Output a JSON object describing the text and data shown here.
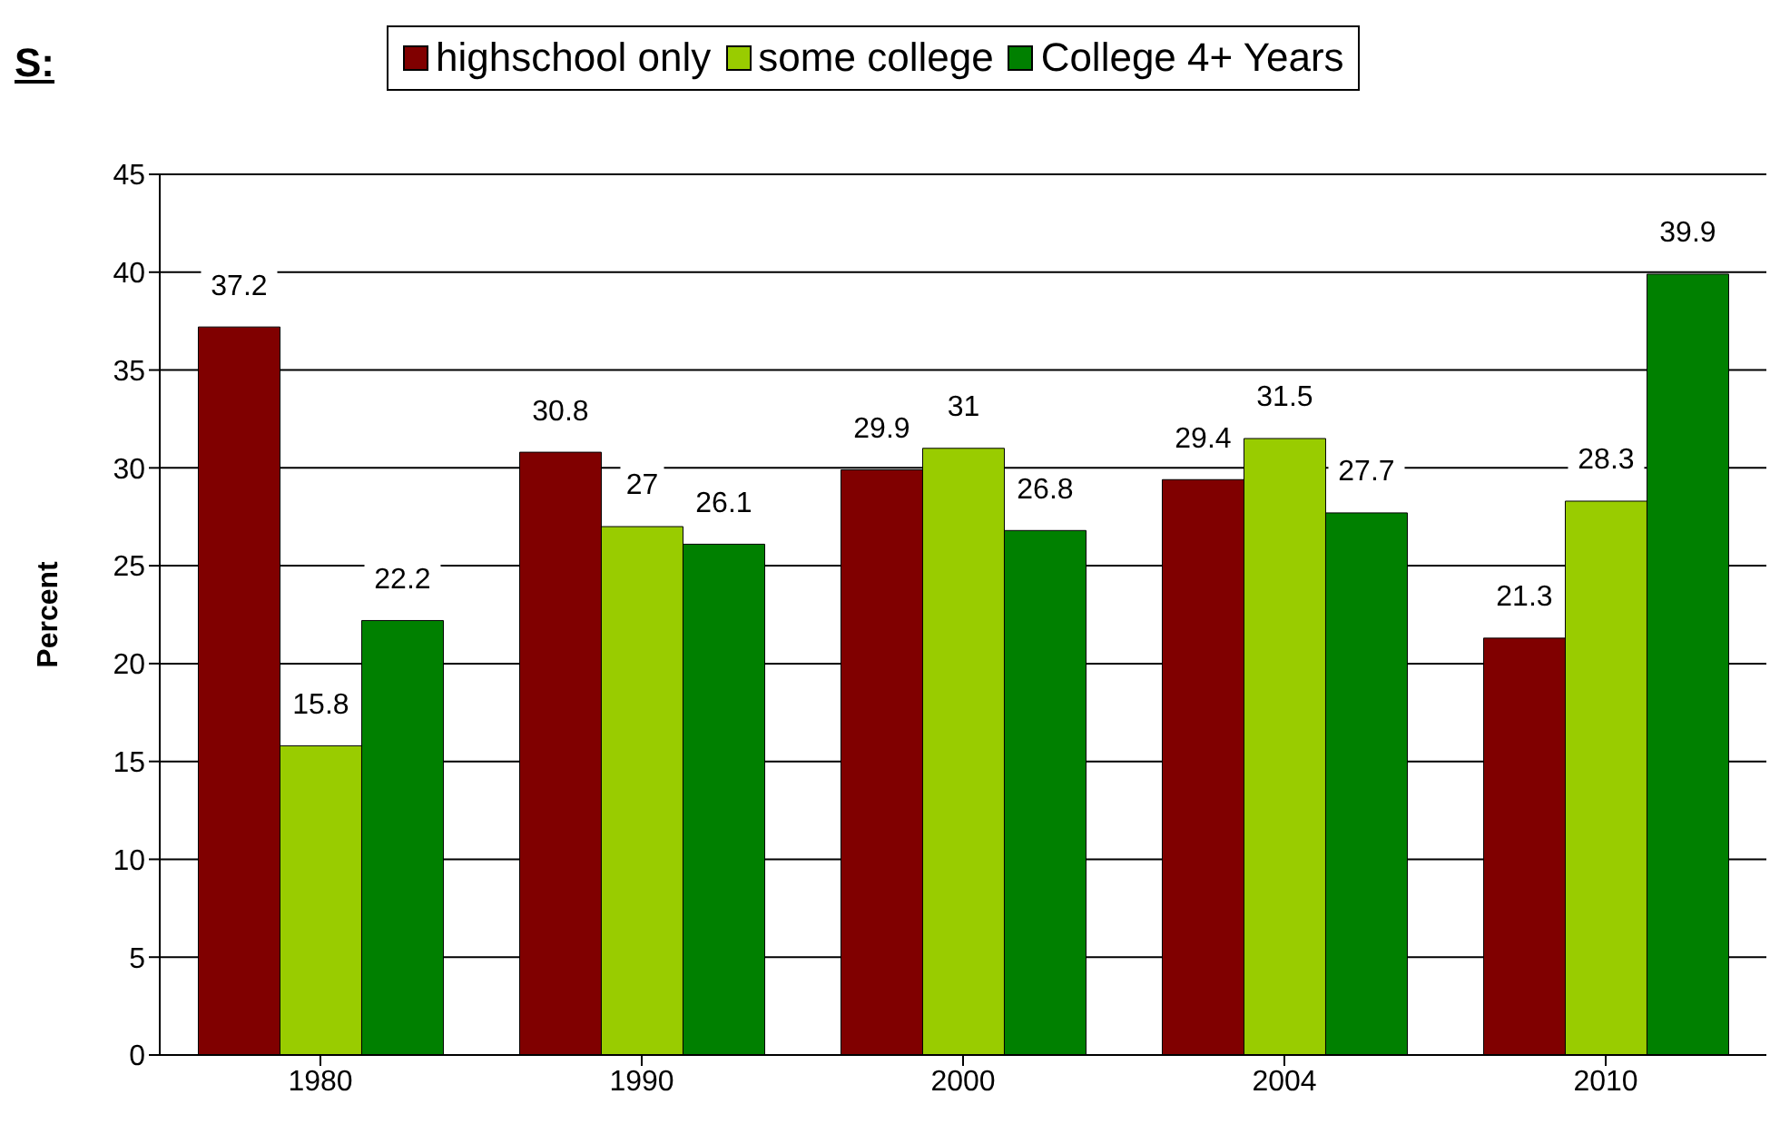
{
  "chart_data": {
    "type": "bar",
    "title": "S:",
    "ylabel": "Percent",
    "categories": [
      "1980",
      "1990",
      "2000",
      "2004",
      "2010"
    ],
    "series": [
      {
        "name": "highschool only",
        "color": "#800000",
        "values": [
          37.2,
          30.8,
          29.9,
          29.4,
          21.3
        ]
      },
      {
        "name": "some college",
        "color": "#99cc00",
        "values": [
          15.8,
          27,
          31,
          31.5,
          28.3
        ]
      },
      {
        "name": "College 4+ Years",
        "color": "#008000",
        "values": [
          22.2,
          26.1,
          26.8,
          27.7,
          39.9
        ]
      }
    ],
    "ylim": [
      0,
      45
    ],
    "yticks": [
      0,
      5,
      10,
      15,
      20,
      25,
      30,
      35,
      40,
      45
    ],
    "grid": "y",
    "legend": "top",
    "data_labels": true
  }
}
